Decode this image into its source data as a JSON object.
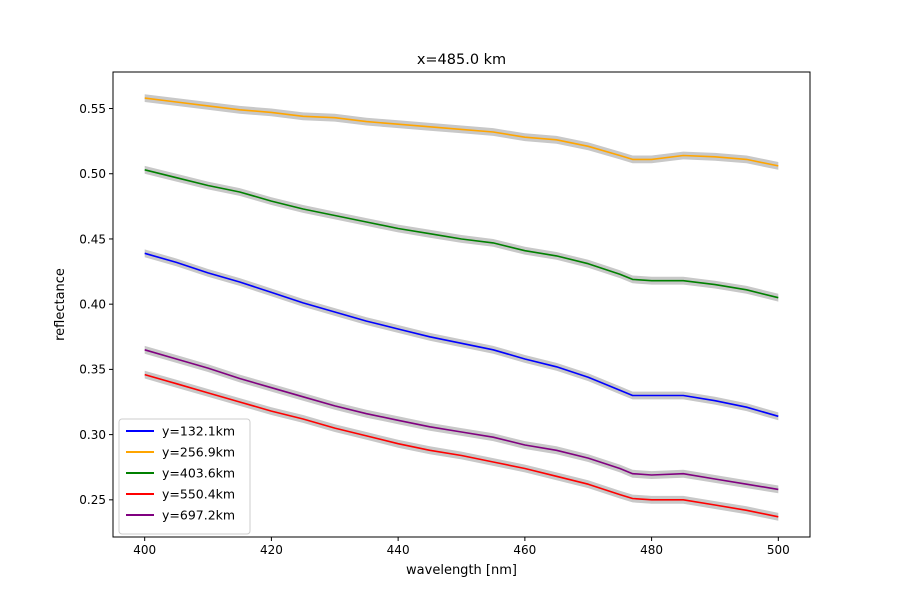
{
  "chart_data": {
    "type": "line",
    "title": "x=485.0 km",
    "xlabel": "wavelength [nm]",
    "ylabel": "reflectance",
    "xlim": [
      395,
      505
    ],
    "ylim": [
      0.2215,
      0.578
    ],
    "x_ticks": [
      400,
      420,
      440,
      460,
      480,
      500
    ],
    "y_ticks": [
      0.25,
      0.3,
      0.35,
      0.4,
      0.45,
      0.5,
      0.55
    ],
    "x_tick_labels": [
      "400",
      "420",
      "440",
      "460",
      "480",
      "500"
    ],
    "y_tick_labels": [
      "0.25",
      "0.30",
      "0.35",
      "0.40",
      "0.45",
      "0.50",
      "0.55"
    ],
    "grid": false,
    "legend_position": "lower-left",
    "uncertainty_band": {
      "color": "#c8c8c8",
      "half_width": 0.003
    },
    "series": [
      {
        "name": "y=132.1km",
        "color": "#0000ff",
        "x": [
          400,
          405,
          410,
          415,
          420,
          425,
          430,
          435,
          440,
          445,
          450,
          455,
          460,
          465,
          470,
          475,
          477,
          480,
          485,
          490,
          495,
          500
        ],
        "values": [
          0.439,
          0.432,
          0.424,
          0.417,
          0.409,
          0.401,
          0.394,
          0.387,
          0.381,
          0.375,
          0.37,
          0.365,
          0.358,
          0.352,
          0.344,
          0.334,
          0.33,
          0.33,
          0.33,
          0.326,
          0.321,
          0.314
        ]
      },
      {
        "name": "y=256.9km",
        "color": "#ffa500",
        "x": [
          400,
          405,
          410,
          415,
          420,
          425,
          430,
          435,
          440,
          445,
          450,
          455,
          460,
          465,
          470,
          475,
          477,
          480,
          485,
          490,
          495,
          500
        ],
        "values": [
          0.558,
          0.555,
          0.552,
          0.549,
          0.547,
          0.544,
          0.543,
          0.54,
          0.538,
          0.536,
          0.534,
          0.532,
          0.528,
          0.526,
          0.521,
          0.514,
          0.511,
          0.511,
          0.514,
          0.513,
          0.511,
          0.506
        ]
      },
      {
        "name": "y=403.6km",
        "color": "#008000",
        "x": [
          400,
          405,
          410,
          415,
          420,
          425,
          430,
          435,
          440,
          445,
          450,
          455,
          460,
          465,
          470,
          475,
          477,
          480,
          485,
          490,
          495,
          500
        ],
        "values": [
          0.503,
          0.497,
          0.491,
          0.486,
          0.479,
          0.473,
          0.468,
          0.463,
          0.458,
          0.454,
          0.45,
          0.447,
          0.441,
          0.437,
          0.431,
          0.423,
          0.419,
          0.418,
          0.418,
          0.415,
          0.411,
          0.405
        ]
      },
      {
        "name": "y=550.4km",
        "color": "#ff0000",
        "x": [
          400,
          405,
          410,
          415,
          420,
          425,
          430,
          435,
          440,
          445,
          450,
          455,
          460,
          465,
          470,
          475,
          477,
          480,
          485,
          490,
          495,
          500
        ],
        "values": [
          0.346,
          0.339,
          0.332,
          0.325,
          0.318,
          0.312,
          0.305,
          0.299,
          0.293,
          0.288,
          0.284,
          0.279,
          0.274,
          0.268,
          0.262,
          0.254,
          0.251,
          0.25,
          0.25,
          0.246,
          0.242,
          0.237
        ]
      },
      {
        "name": "y=697.2km",
        "color": "#800080",
        "x": [
          400,
          405,
          410,
          415,
          420,
          425,
          430,
          435,
          440,
          445,
          450,
          455,
          460,
          465,
          470,
          475,
          477,
          480,
          485,
          490,
          495,
          500
        ],
        "values": [
          0.365,
          0.358,
          0.351,
          0.343,
          0.336,
          0.329,
          0.322,
          0.316,
          0.311,
          0.306,
          0.302,
          0.298,
          0.292,
          0.288,
          0.282,
          0.274,
          0.27,
          0.269,
          0.27,
          0.266,
          0.262,
          0.258
        ]
      }
    ]
  }
}
